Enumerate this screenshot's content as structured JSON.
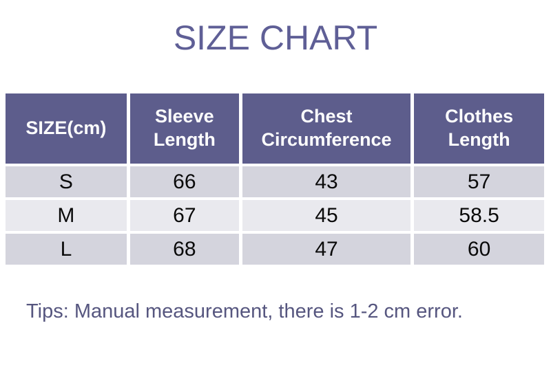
{
  "page": {
    "title": "SIZE CHART",
    "tips": "Tips: Manual measurement, there is 1-2 cm error."
  },
  "table": {
    "headers": [
      "SIZE(cm)",
      "Sleeve\nLength",
      "Chest\nCircumference",
      "Clothes\nLength"
    ],
    "rows": [
      [
        "S",
        "66",
        "43",
        "57"
      ],
      [
        "M",
        "67",
        "45",
        "58.5"
      ],
      [
        "L",
        "68",
        "47",
        "60"
      ]
    ]
  },
  "colors": {
    "title_color": "#5f5f96",
    "header_bg": "#5d5d8c",
    "header_text": "#fdfdfd",
    "row_dark": "#d4d4dd",
    "row_light": "#e9e9ee",
    "tips_color": "#56567f"
  },
  "chart_data": {
    "type": "table",
    "title": "SIZE CHART",
    "unit": "cm",
    "columns": [
      "SIZE(cm)",
      "Sleeve Length",
      "Chest Circumference",
      "Clothes Length"
    ],
    "rows": [
      [
        "S",
        66,
        43,
        57
      ],
      [
        "M",
        67,
        45,
        58.5
      ],
      [
        "L",
        68,
        47,
        60
      ]
    ],
    "note": "Tips: Manual measurement, there is 1-2 cm error."
  }
}
